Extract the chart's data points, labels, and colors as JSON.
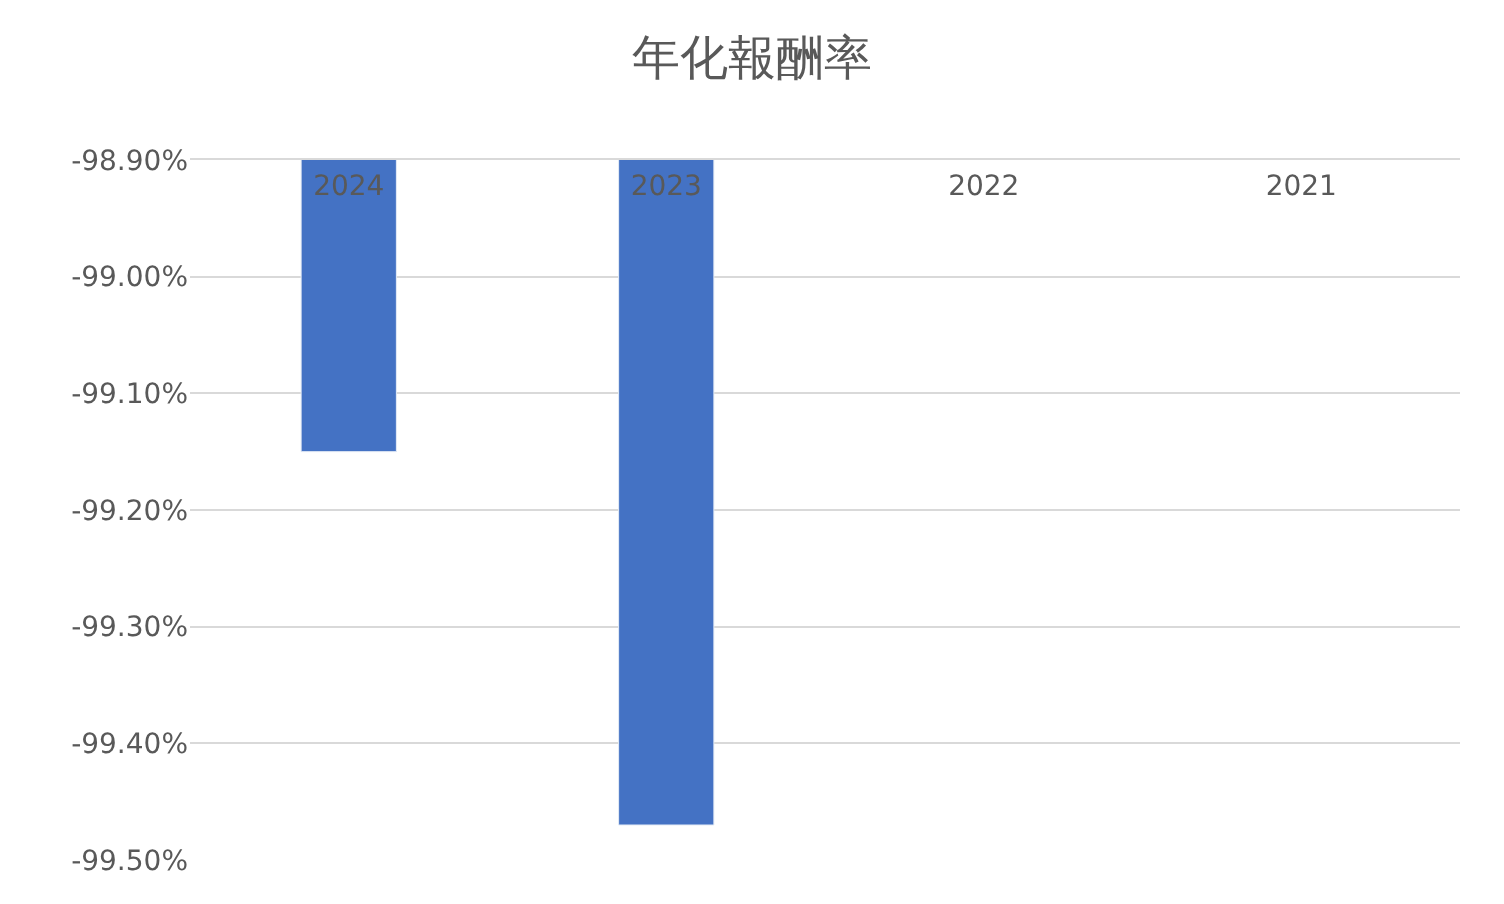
{
  "chart_data": {
    "type": "bar",
    "title": "年化報酬率",
    "categories": [
      "2024",
      "2023",
      "2022",
      "2021"
    ],
    "values": [
      -99.15,
      -99.47,
      null,
      null
    ],
    "color": "#4472c4",
    "ylim": [
      -99.5,
      -98.9
    ],
    "yticks": [
      {
        "value": -98.9,
        "label": "-98.90%"
      },
      {
        "value": -99.0,
        "label": "-99.00%"
      },
      {
        "value": -99.1,
        "label": "-99.10%"
      },
      {
        "value": -99.2,
        "label": "-99.20%"
      },
      {
        "value": -99.3,
        "label": "-99.30%"
      },
      {
        "value": -99.4,
        "label": "-99.40%"
      },
      {
        "value": -99.5,
        "label": "-99.50%"
      }
    ],
    "grid": "y",
    "legend": false
  }
}
